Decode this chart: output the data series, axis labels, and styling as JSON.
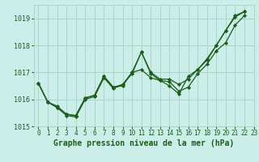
{
  "xlabel": "Graphe pression niveau de la mer (hPa)",
  "bg_color": "#cceee8",
  "grid_color": "#aad4cc",
  "line_color": "#1a5e1a",
  "marker_color": "#1a5e1a",
  "text_color": "#1a5e1a",
  "ylim": [
    1015.0,
    1019.5
  ],
  "xlim": [
    -0.5,
    23.0
  ],
  "yticks": [
    1015,
    1016,
    1017,
    1018,
    1019
  ],
  "xticks": [
    0,
    1,
    2,
    3,
    4,
    5,
    6,
    7,
    8,
    9,
    10,
    11,
    12,
    13,
    14,
    15,
    16,
    17,
    18,
    19,
    20,
    21,
    22,
    23
  ],
  "series": [
    [
      1016.6,
      1015.9,
      1015.75,
      1015.45,
      1015.4,
      1016.05,
      1016.15,
      1016.85,
      1016.45,
      1016.55,
      1017.0,
      1017.75,
      1017.0,
      1016.75,
      1016.75,
      1016.55,
      1016.75,
      1017.1,
      1017.5,
      1018.0,
      1018.55,
      1019.05,
      1019.25
    ],
    [
      1016.6,
      1015.9,
      1015.7,
      1015.4,
      1015.35,
      1016.0,
      1016.1,
      1016.8,
      1016.4,
      1016.55,
      1016.95,
      1017.75,
      1016.95,
      1016.7,
      1016.65,
      1016.3,
      1016.45,
      1016.95,
      1017.3,
      1017.8,
      1018.1,
      1018.75,
      1019.1
    ],
    [
      1016.6,
      1015.9,
      1015.7,
      1015.45,
      1015.4,
      1016.05,
      1016.15,
      1016.85,
      1016.45,
      1016.5,
      1017.0,
      1017.1,
      1016.8,
      1016.7,
      1016.5,
      1016.2,
      1016.85,
      1017.1,
      1017.45,
      1018.0,
      1018.55,
      1019.1,
      1019.25
    ]
  ],
  "x_series": [
    0,
    1,
    2,
    3,
    4,
    5,
    6,
    7,
    8,
    9,
    10,
    11,
    12,
    13,
    14,
    15,
    16,
    17,
    18,
    19,
    20,
    21,
    22
  ],
  "ylabel_fontsize": 6,
  "xlabel_fontsize": 7,
  "tick_fontsize": 5.5
}
